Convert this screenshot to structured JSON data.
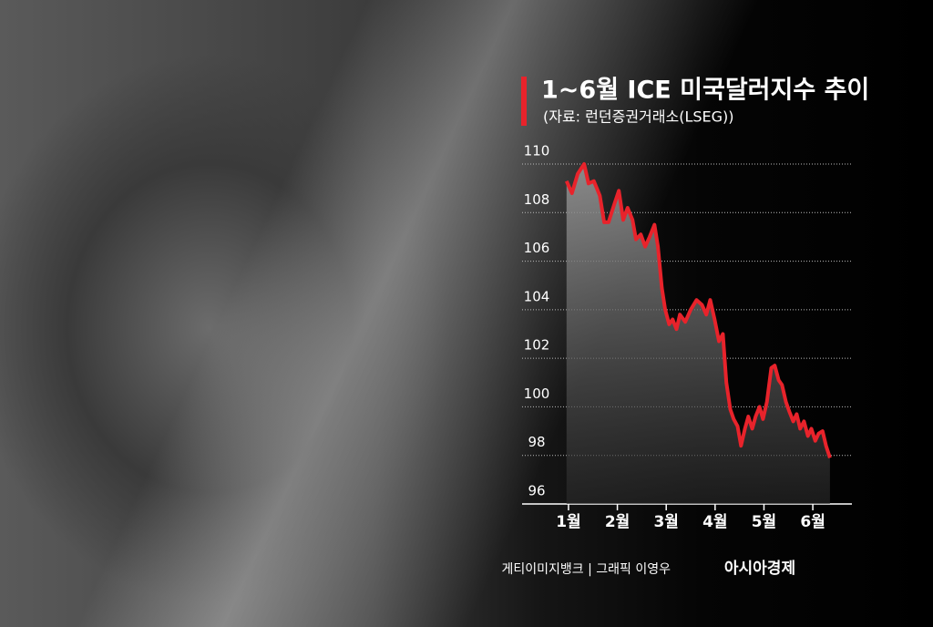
{
  "chart_data": {
    "type": "line",
    "title": "1~6월 ICE 미국달러지수 추이",
    "subtitle": "(자료: 런던증권거래소(LSEG))",
    "credit": "게티이미지뱅크 | 그래픽 이영우",
    "logo": "아시아경제",
    "x": [
      0.96,
      1.07,
      1.19,
      1.32,
      1.41,
      1.52,
      1.64,
      1.73,
      1.82,
      1.93,
      2.03,
      2.12,
      2.21,
      2.31,
      2.38,
      2.48,
      2.57,
      2.66,
      2.76,
      2.83,
      2.91,
      2.98,
      3.06,
      3.13,
      3.21,
      3.28,
      3.39,
      3.5,
      3.62,
      3.73,
      3.82,
      3.9,
      3.99,
      4.08,
      4.16,
      4.23,
      4.31,
      4.38,
      4.46,
      4.53,
      4.61,
      4.68,
      4.76,
      4.83,
      4.91,
      4.98,
      5.06,
      5.15,
      5.22,
      5.3,
      5.37,
      5.45,
      5.52,
      5.6,
      5.67,
      5.74,
      5.82,
      5.9,
      5.97,
      6.05,
      6.12,
      6.2,
      6.27,
      6.35
    ],
    "series": [
      {
        "name": "ICE 미국달러지수",
        "color": "#e8232b",
        "values": [
          109.3,
          108.8,
          109.6,
          110.0,
          109.2,
          109.3,
          108.7,
          107.6,
          107.6,
          108.3,
          108.9,
          107.7,
          108.2,
          107.7,
          106.9,
          107.1,
          106.6,
          107.0,
          107.5,
          106.6,
          104.9,
          104.0,
          103.4,
          103.6,
          103.2,
          103.8,
          103.5,
          104.0,
          104.4,
          104.2,
          103.8,
          104.4,
          103.6,
          102.7,
          103.0,
          101.0,
          99.9,
          99.5,
          99.2,
          98.4,
          99.1,
          99.6,
          99.1,
          99.6,
          100.0,
          99.5,
          100.2,
          101.6,
          101.7,
          101.1,
          100.9,
          100.2,
          99.8,
          99.4,
          99.7,
          99.1,
          99.4,
          98.8,
          99.1,
          98.6,
          98.9,
          99.0,
          98.4,
          97.9
        ]
      }
    ],
    "xlim": [
      0.05,
      6.8
    ],
    "xticks": [
      {
        "value": 1,
        "label": "1월"
      },
      {
        "value": 2,
        "label": "2월"
      },
      {
        "value": 3,
        "label": "3월"
      },
      {
        "value": 4,
        "label": "4월"
      },
      {
        "value": 5,
        "label": "5월"
      },
      {
        "value": 6,
        "label": "6월"
      }
    ],
    "ylim": [
      96,
      110
    ],
    "yticks": [
      96,
      98,
      100,
      102,
      104,
      106,
      108,
      110
    ],
    "grid": true
  }
}
